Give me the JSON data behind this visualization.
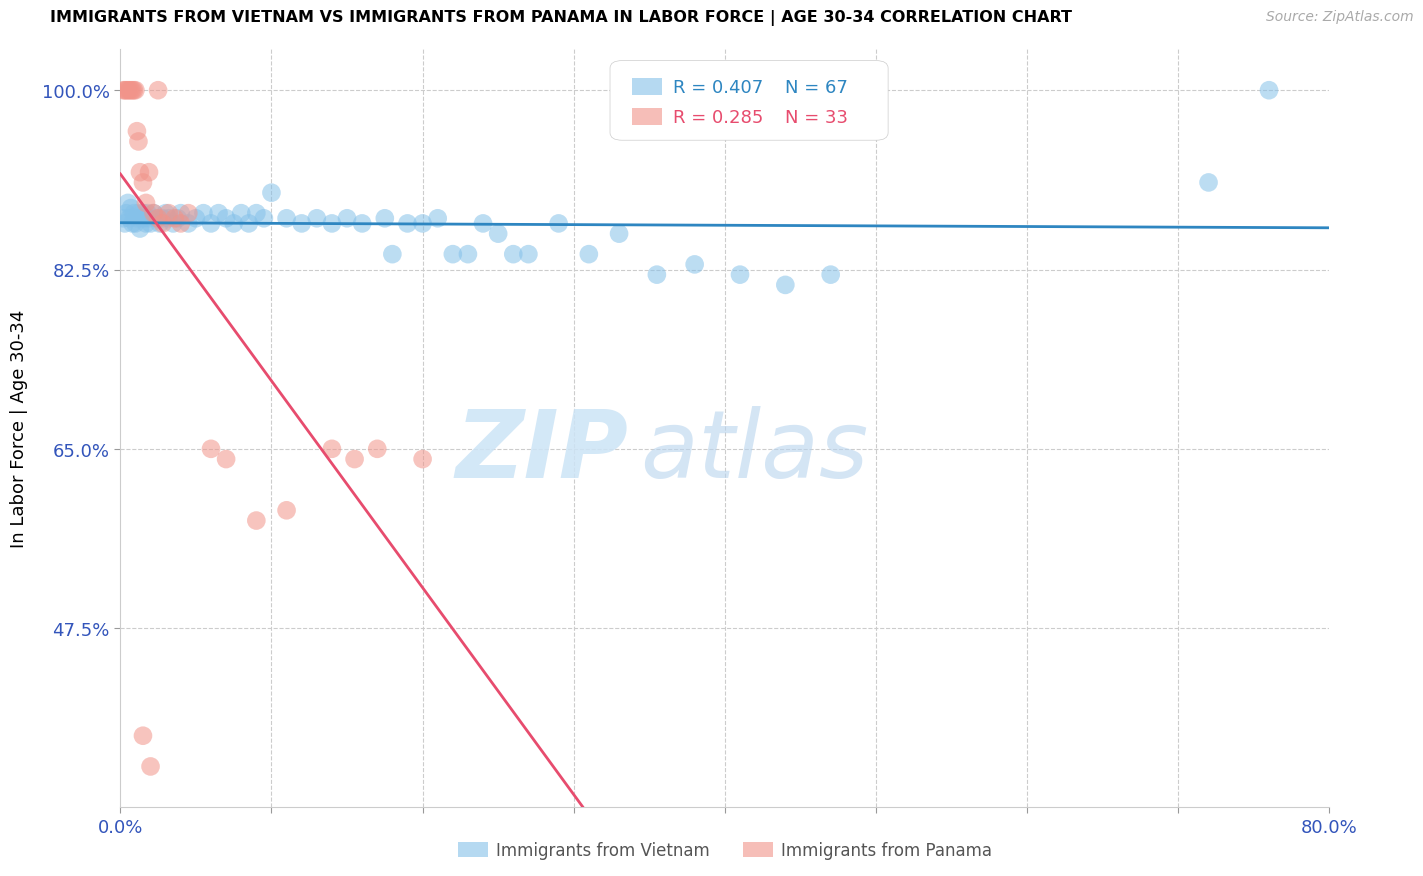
{
  "title": "IMMIGRANTS FROM VIETNAM VS IMMIGRANTS FROM PANAMA IN LABOR FORCE | AGE 30-34 CORRELATION CHART",
  "source": "Source: ZipAtlas.com",
  "ylabel": "In Labor Force | Age 30-34",
  "xlim": [
    0.0,
    0.8
  ],
  "ylim": [
    0.3,
    1.04
  ],
  "yticks": [
    0.475,
    0.65,
    0.825,
    1.0
  ],
  "ytick_labels": [
    "47.5%",
    "65.0%",
    "82.5%",
    "100.0%"
  ],
  "xticks": [
    0.0,
    0.1,
    0.2,
    0.3,
    0.4,
    0.5,
    0.6,
    0.7,
    0.8
  ],
  "xtick_labels": [
    "0.0%",
    "",
    "",
    "",
    "",
    "",
    "",
    "",
    "80.0%"
  ],
  "vietnam_color": "#85c1e9",
  "panama_color": "#f1948a",
  "vietnam_line_color": "#2e86c1",
  "panama_line_color": "#e74c6e",
  "watermark_zip": "ZIP",
  "watermark_atlas": "atlas",
  "vietnam_x": [
    0.002,
    0.003,
    0.004,
    0.005,
    0.006,
    0.007,
    0.008,
    0.009,
    0.01,
    0.011,
    0.012,
    0.013,
    0.014,
    0.015,
    0.016,
    0.017,
    0.018,
    0.019,
    0.02,
    0.022,
    0.024,
    0.026,
    0.028,
    0.03,
    0.032,
    0.035,
    0.038,
    0.04,
    0.045,
    0.05,
    0.055,
    0.06,
    0.065,
    0.07,
    0.075,
    0.08,
    0.085,
    0.09,
    0.095,
    0.1,
    0.11,
    0.12,
    0.13,
    0.14,
    0.15,
    0.16,
    0.175,
    0.19,
    0.21,
    0.23,
    0.25,
    0.27,
    0.29,
    0.31,
    0.33,
    0.355,
    0.38,
    0.41,
    0.44,
    0.47,
    0.18,
    0.2,
    0.22,
    0.24,
    0.26,
    0.72,
    0.76
  ],
  "vietnam_y": [
    0.875,
    0.87,
    0.88,
    0.89,
    0.875,
    0.885,
    0.87,
    0.88,
    0.87,
    0.875,
    0.88,
    0.865,
    0.875,
    0.88,
    0.875,
    0.87,
    0.88,
    0.875,
    0.87,
    0.88,
    0.875,
    0.87,
    0.875,
    0.88,
    0.875,
    0.87,
    0.875,
    0.88,
    0.87,
    0.875,
    0.88,
    0.87,
    0.88,
    0.875,
    0.87,
    0.88,
    0.87,
    0.88,
    0.875,
    0.9,
    0.875,
    0.87,
    0.875,
    0.87,
    0.875,
    0.87,
    0.875,
    0.87,
    0.875,
    0.84,
    0.86,
    0.84,
    0.87,
    0.84,
    0.86,
    0.82,
    0.83,
    0.82,
    0.81,
    0.82,
    0.84,
    0.87,
    0.84,
    0.87,
    0.84,
    0.91,
    1.0
  ],
  "panama_x": [
    0.002,
    0.003,
    0.004,
    0.005,
    0.006,
    0.007,
    0.008,
    0.009,
    0.01,
    0.011,
    0.012,
    0.013,
    0.015,
    0.017,
    0.019,
    0.022,
    0.025,
    0.028,
    0.032,
    0.036,
    0.04,
    0.045,
    0.06,
    0.07,
    0.09,
    0.11,
    0.14,
    0.155,
    0.17,
    0.2,
    0.015,
    0.02,
    0.025
  ],
  "panama_y": [
    1.0,
    1.0,
    1.0,
    1.0,
    1.0,
    1.0,
    1.0,
    1.0,
    1.0,
    0.96,
    0.95,
    0.92,
    0.91,
    0.89,
    0.92,
    0.88,
    0.875,
    0.87,
    0.88,
    0.875,
    0.87,
    0.88,
    0.65,
    0.64,
    0.58,
    0.59,
    0.65,
    0.64,
    0.65,
    0.64,
    0.37,
    0.34,
    1.0
  ]
}
